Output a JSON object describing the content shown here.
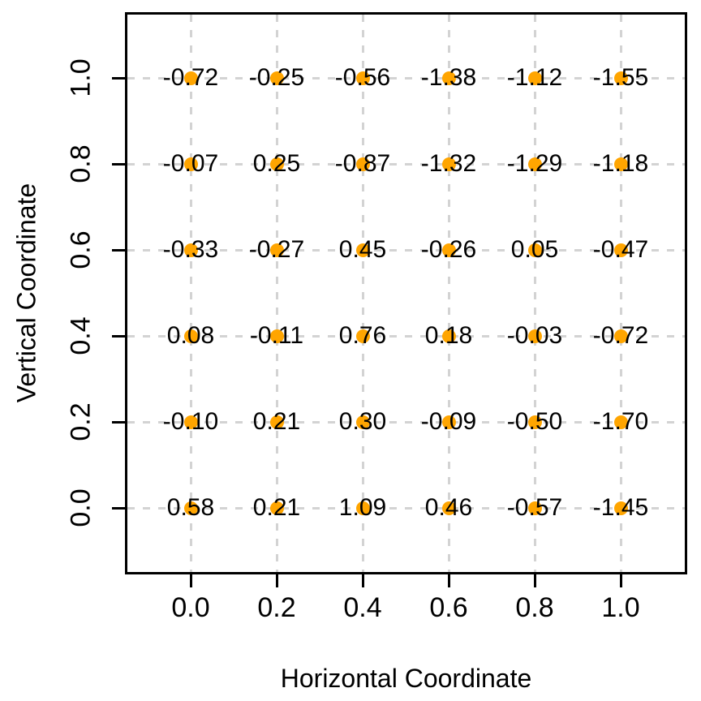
{
  "chart_data": {
    "type": "scatter",
    "title": "",
    "xlabel": "Horizontal Coordinate",
    "ylabel": "Vertical Coordinate",
    "x_ticks": [
      "0.0",
      "0.2",
      "0.4",
      "0.6",
      "0.8",
      "1.0"
    ],
    "y_ticks": [
      "0.0",
      "0.2",
      "0.4",
      "0.6",
      "0.8",
      "1.0"
    ],
    "xlim": [
      -0.15,
      1.15
    ],
    "ylim": [
      -0.15,
      1.15
    ],
    "grid": "dashed",
    "legend": "none",
    "point_color": "#FFA500",
    "grid_color": "#D3D3D3",
    "frame_color": "#000000",
    "text_color": "#000000",
    "points": [
      {
        "x": 0.0,
        "y": 1.0,
        "label": "-0.72"
      },
      {
        "x": 0.2,
        "y": 1.0,
        "label": "-0.25"
      },
      {
        "x": 0.4,
        "y": 1.0,
        "label": "-0.56"
      },
      {
        "x": 0.6,
        "y": 1.0,
        "label": "-1.38"
      },
      {
        "x": 0.8,
        "y": 1.0,
        "label": "-1.12"
      },
      {
        "x": 1.0,
        "y": 1.0,
        "label": "-1.55"
      },
      {
        "x": 0.0,
        "y": 0.8,
        "label": "-0.07"
      },
      {
        "x": 0.2,
        "y": 0.8,
        "label": "0.25"
      },
      {
        "x": 0.4,
        "y": 0.8,
        "label": "-0.87"
      },
      {
        "x": 0.6,
        "y": 0.8,
        "label": "-1.32"
      },
      {
        "x": 0.8,
        "y": 0.8,
        "label": "-1.29"
      },
      {
        "x": 1.0,
        "y": 0.8,
        "label": "-1.18"
      },
      {
        "x": 0.0,
        "y": 0.6,
        "label": "-0.33"
      },
      {
        "x": 0.2,
        "y": 0.6,
        "label": "-0.27"
      },
      {
        "x": 0.4,
        "y": 0.6,
        "label": "0.45"
      },
      {
        "x": 0.6,
        "y": 0.6,
        "label": "-0.26"
      },
      {
        "x": 0.8,
        "y": 0.6,
        "label": "0.05"
      },
      {
        "x": 1.0,
        "y": 0.6,
        "label": "-0.47"
      },
      {
        "x": 0.0,
        "y": 0.4,
        "label": "0.08"
      },
      {
        "x": 0.2,
        "y": 0.4,
        "label": "-0.11"
      },
      {
        "x": 0.4,
        "y": 0.4,
        "label": "0.76"
      },
      {
        "x": 0.6,
        "y": 0.4,
        "label": "0.18"
      },
      {
        "x": 0.8,
        "y": 0.4,
        "label": "-0.03"
      },
      {
        "x": 1.0,
        "y": 0.4,
        "label": "-0.72"
      },
      {
        "x": 0.0,
        "y": 0.2,
        "label": "-0.10"
      },
      {
        "x": 0.2,
        "y": 0.2,
        "label": "0.21"
      },
      {
        "x": 0.4,
        "y": 0.2,
        "label": "0.30"
      },
      {
        "x": 0.6,
        "y": 0.2,
        "label": "-0.09"
      },
      {
        "x": 0.8,
        "y": 0.2,
        "label": "-0.50"
      },
      {
        "x": 1.0,
        "y": 0.2,
        "label": "-1.70"
      },
      {
        "x": 0.0,
        "y": 0.0,
        "label": "0.58"
      },
      {
        "x": 0.2,
        "y": 0.0,
        "label": "0.21"
      },
      {
        "x": 0.4,
        "y": 0.0,
        "label": "1.09"
      },
      {
        "x": 0.6,
        "y": 0.0,
        "label": "0.46"
      },
      {
        "x": 0.8,
        "y": 0.0,
        "label": "-0.57"
      },
      {
        "x": 1.0,
        "y": 0.0,
        "label": "-1.45"
      }
    ]
  }
}
